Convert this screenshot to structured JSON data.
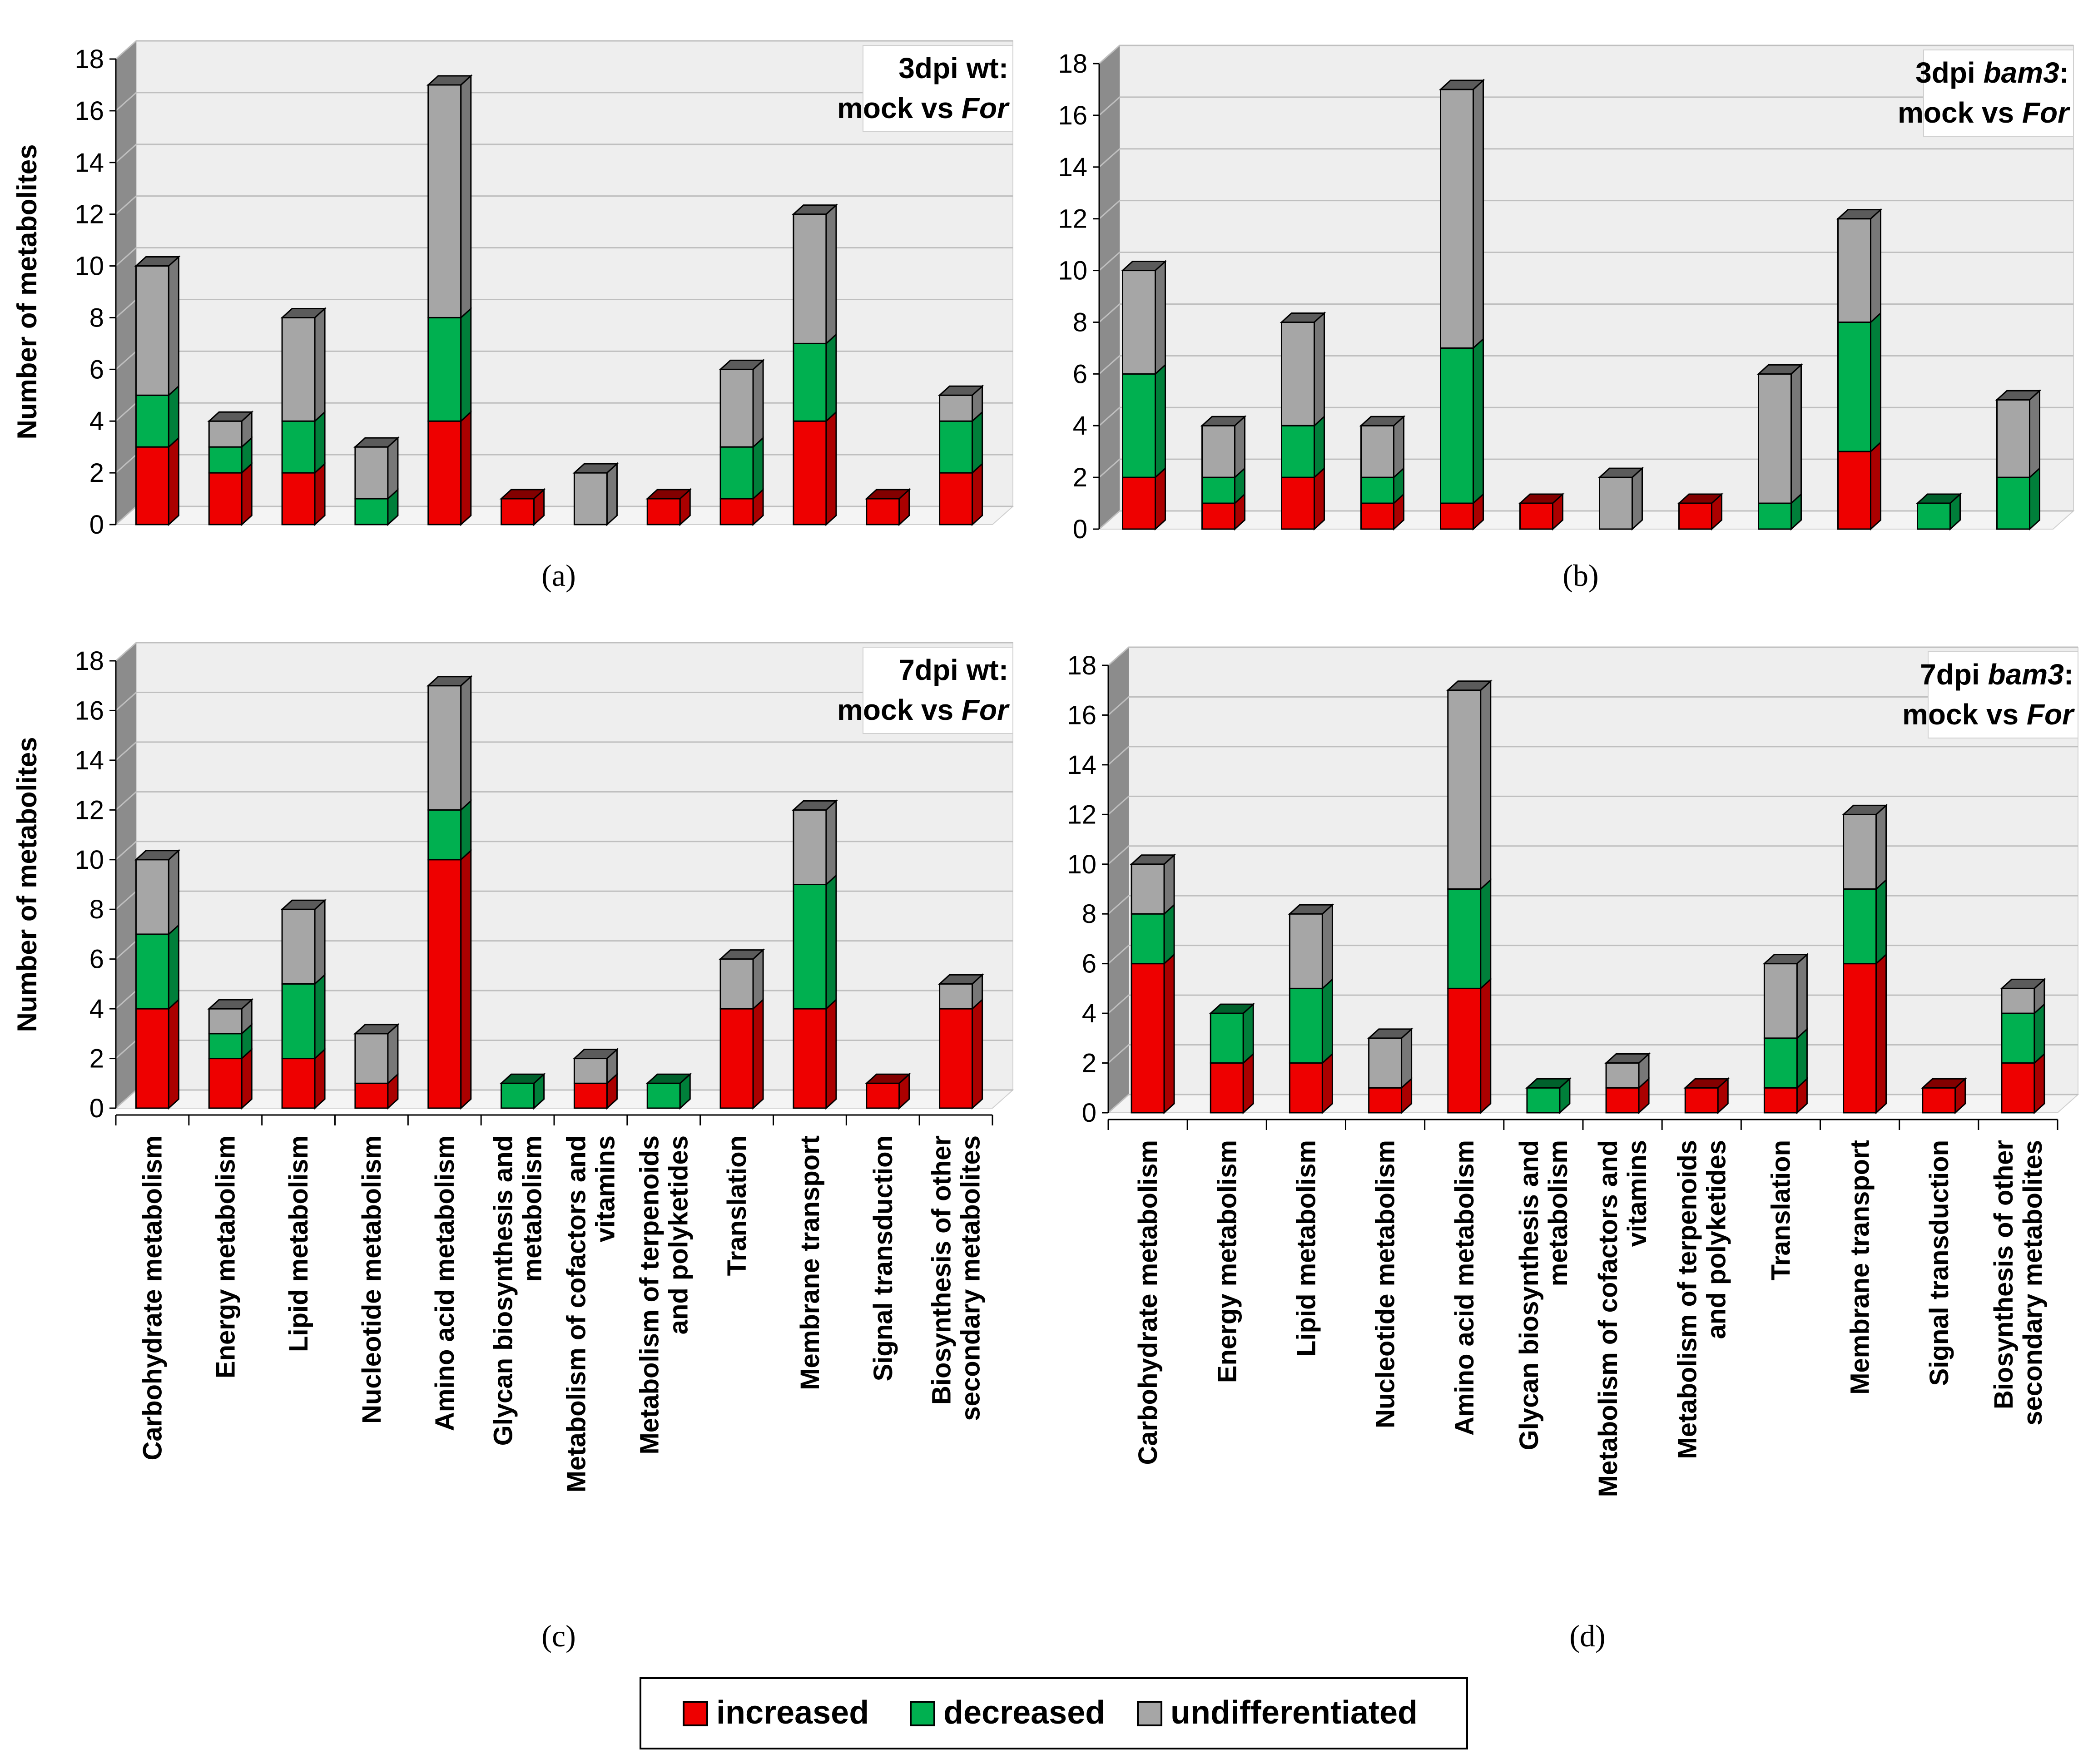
{
  "colors": {
    "increased": "#ee0000",
    "decreased": "#00b050",
    "undifferentiated": "#a6a6a6",
    "wall": "#eeeeee",
    "side_wall": "#8c8c8c",
    "grid": "#bfbfbf"
  },
  "legend": [
    {
      "key": "increased",
      "label": "increased"
    },
    {
      "key": "decreased",
      "label": "decreased"
    },
    {
      "key": "undifferentiated",
      "label": "undifferentiated"
    }
  ],
  "categories": [
    [
      "Carbohydrate metabolism"
    ],
    [
      "Energy metabolism"
    ],
    [
      "Lipid metabolism"
    ],
    [
      "Nucleotide metabolism"
    ],
    [
      "Amino acid metabolism"
    ],
    [
      "Glycan biosynthesis and",
      "metabolism"
    ],
    [
      "Metabolism of cofactors and",
      "vitamins"
    ],
    [
      "Metabolism of terpenoids",
      "and polyketides"
    ],
    [
      "Translation"
    ],
    [
      "Membrane transport"
    ],
    [
      "Signal transduction"
    ],
    [
      "Biosynthesis of other",
      "secondary metabolites"
    ]
  ],
  "chart_data": [
    {
      "type": "bar",
      "panel": "(a)",
      "title": [
        "3dpi wt:",
        "mock vs For"
      ],
      "title_italic": [
        "",
        "For"
      ],
      "ylabel": "Number of metabolites",
      "ylim": [
        0,
        18
      ],
      "yticks": [
        "0",
        "2",
        "4",
        "6",
        "8",
        "10",
        "12",
        "14",
        "16",
        "18"
      ],
      "series": [
        {
          "name": "increased",
          "values": [
            3,
            2,
            2,
            0,
            4,
            1,
            0,
            1,
            1,
            4,
            1,
            2
          ]
        },
        {
          "name": "decreased",
          "values": [
            2,
            1,
            2,
            1,
            4,
            0,
            0,
            0,
            2,
            3,
            0,
            2
          ]
        },
        {
          "name": "undifferentiated",
          "values": [
            5,
            1,
            4,
            2,
            9,
            0,
            2,
            0,
            3,
            5,
            0,
            1
          ]
        }
      ]
    },
    {
      "type": "bar",
      "panel": "(b)",
      "title": [
        "3dpi bam3:",
        "mock vs For"
      ],
      "title_italic": [
        "bam3",
        "For"
      ],
      "ylabel": "",
      "ylim": [
        0,
        18
      ],
      "yticks": [
        "0",
        "2",
        "4",
        "6",
        "8",
        "10",
        "12",
        "14",
        "16",
        "18"
      ],
      "series": [
        {
          "name": "increased",
          "values": [
            2,
            1,
            2,
            1,
            1,
            1,
            0,
            1,
            0,
            3,
            0,
            0
          ]
        },
        {
          "name": "decreased",
          "values": [
            4,
            1,
            2,
            1,
            6,
            0,
            0,
            0,
            1,
            5,
            1,
            2
          ]
        },
        {
          "name": "undifferentiated",
          "values": [
            4,
            2,
            4,
            2,
            10,
            0,
            2,
            0,
            5,
            4,
            0,
            3
          ]
        }
      ]
    },
    {
      "type": "bar",
      "panel": "(c)",
      "title": [
        "7dpi wt:",
        "mock vs For"
      ],
      "title_italic": [
        "",
        "For"
      ],
      "ylabel": "Number of metabolites",
      "ylim": [
        0,
        18
      ],
      "yticks": [
        "0",
        "2",
        "4",
        "6",
        "8",
        "10",
        "12",
        "14",
        "16",
        "18"
      ],
      "series": [
        {
          "name": "increased",
          "values": [
            4,
            2,
            2,
            1,
            10,
            0,
            1,
            0,
            4,
            4,
            1,
            4
          ]
        },
        {
          "name": "decreased",
          "values": [
            3,
            1,
            3,
            0,
            2,
            1,
            0,
            1,
            0,
            5,
            0,
            0
          ]
        },
        {
          "name": "undifferentiated",
          "values": [
            3,
            1,
            3,
            2,
            5,
            0,
            1,
            0,
            2,
            3,
            0,
            1
          ]
        }
      ]
    },
    {
      "type": "bar",
      "panel": "(d)",
      "title": [
        "7dpi bam3:",
        "mock vs For"
      ],
      "title_italic": [
        "bam3",
        "For"
      ],
      "ylabel": "",
      "ylim": [
        0,
        18
      ],
      "yticks": [
        "0",
        "2",
        "4",
        "6",
        "8",
        "10",
        "12",
        "14",
        "16",
        "18"
      ],
      "series": [
        {
          "name": "increased",
          "values": [
            6,
            2,
            2,
            1,
            5,
            0,
            1,
            1,
            1,
            6,
            1,
            2
          ]
        },
        {
          "name": "decreased",
          "values": [
            2,
            2,
            3,
            0,
            4,
            1,
            0,
            0,
            2,
            3,
            0,
            2
          ]
        },
        {
          "name": "undifferentiated",
          "values": [
            2,
            0,
            3,
            2,
            8,
            0,
            1,
            0,
            3,
            3,
            0,
            1
          ]
        }
      ]
    }
  ]
}
